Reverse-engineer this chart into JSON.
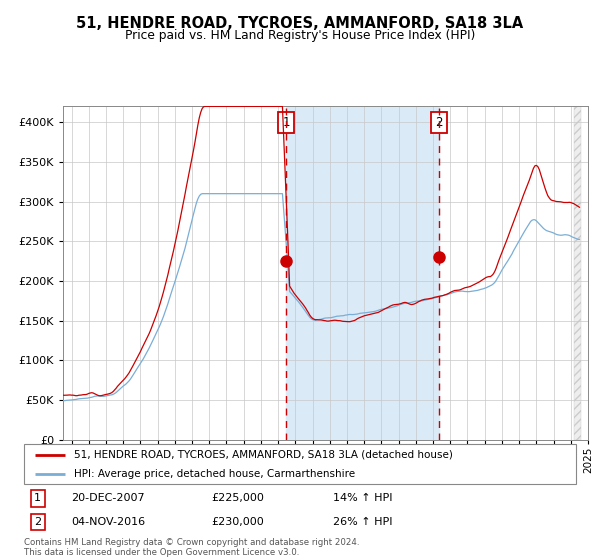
{
  "title": "51, HENDRE ROAD, TYCROES, AMMANFORD, SA18 3LA",
  "subtitle": "Price paid vs. HM Land Registry's House Price Index (HPI)",
  "legend_line1": "51, HENDRE ROAD, TYCROES, AMMANFORD, SA18 3LA (detached house)",
  "legend_line2": "HPI: Average price, detached house, Carmarthenshire",
  "transaction1_date": "20-DEC-2007",
  "transaction1_price": 225000,
  "transaction1_pct": "14% ↑ HPI",
  "transaction2_date": "04-NOV-2016",
  "transaction2_price": 230000,
  "transaction2_pct": "26% ↑ HPI",
  "footer": "Contains HM Land Registry data © Crown copyright and database right 2024.\nThis data is licensed under the Open Government Licence v3.0.",
  "property_color": "#cc0000",
  "hpi_color": "#7aaed6",
  "shading_color": "#daeaf7",
  "vline_color": "#cc0000",
  "ylim": [
    0,
    420000
  ],
  "yticks": [
    0,
    50000,
    100000,
    150000,
    200000,
    250000,
    300000,
    350000,
    400000
  ],
  "bg_color": "#ffffff"
}
